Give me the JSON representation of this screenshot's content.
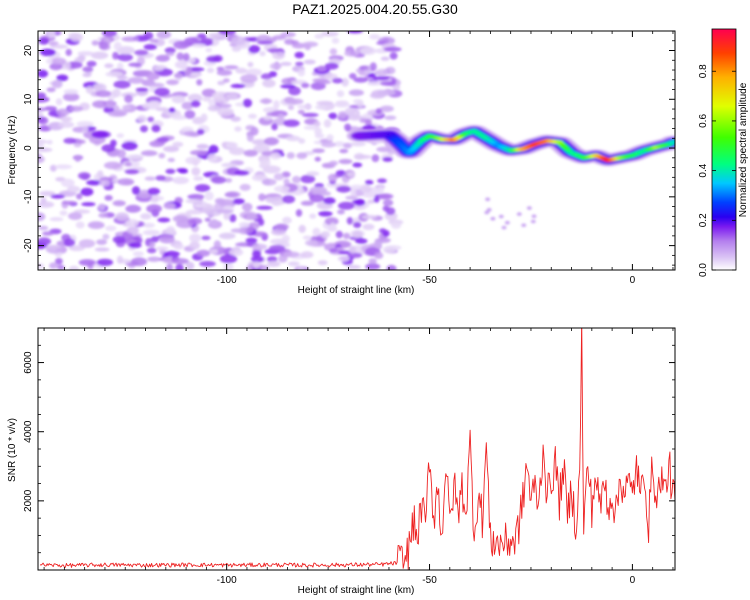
{
  "title": "PAZ1.2025.004.20.55.G30",
  "chart_data": [
    {
      "type": "heatmap",
      "xlabel": "Height of straight line (km)",
      "ylabel": "Frequency (Hz)",
      "xlim": [
        -146.5,
        10.5
      ],
      "ylim": [
        -25,
        24
      ],
      "xticks": [
        -100,
        -50,
        0
      ],
      "yticks": [
        -20,
        -10,
        0,
        10,
        20
      ],
      "colorbar": {
        "label": "Normalized spectral amplitude",
        "range": [
          0.0,
          0.97
        ],
        "ticks": [
          0.0,
          0.2,
          0.4,
          0.6,
          0.8
        ],
        "tick_labels": [
          "0.0",
          "0.2",
          "0.4",
          "0.6",
          "0.8"
        ],
        "colormap": [
          "#ffffff",
          "#dcc6f5",
          "#b47fee",
          "#7a1af0",
          "#3b00f0",
          "#0040ff",
          "#00c8ff",
          "#00ff80",
          "#40ff00",
          "#e0ff00",
          "#ffb000",
          "#ff4000",
          "#ff0050"
        ]
      },
      "signal_track": {
        "x": [
          -67,
          -60,
          -58,
          -55,
          -52,
          -50,
          -47,
          -44,
          -41,
          -39,
          -36,
          -33,
          -30,
          -27,
          -24,
          -21,
          -18,
          -15,
          -12,
          -9,
          -6,
          -3,
          0,
          3,
          6,
          9,
          10.5
        ],
        "frequency": [
          2.5,
          2.8,
          1.5,
          -1.0,
          1.5,
          2.5,
          1.8,
          1.7,
          3.0,
          3.5,
          2.0,
          0.5,
          -0.5,
          -0.2,
          0.8,
          1.5,
          1.2,
          -1.0,
          -2.0,
          -1.5,
          -2.5,
          -2.0,
          -1.5,
          -0.5,
          0.2,
          0.8,
          1.4
        ],
        "amplitude": [
          0.25,
          0.3,
          0.4,
          0.45,
          0.55,
          0.6,
          0.7,
          0.85,
          0.6,
          0.55,
          0.55,
          0.45,
          0.55,
          0.8,
          0.9,
          0.85,
          0.7,
          0.55,
          0.6,
          0.75,
          0.95,
          0.7,
          0.6,
          0.55,
          0.7,
          0.6,
          0.5
        ]
      },
      "noise_region": {
        "x_range": [
          -146.5,
          -58
        ],
        "amplitude_range": [
          0.05,
          0.25
        ]
      }
    },
    {
      "type": "line",
      "xlabel": "Height of straight line (km)",
      "ylabel": "SNR (10 * v/v)",
      "xlim": [
        -146.5,
        10.5
      ],
      "ylim": [
        0,
        7000
      ],
      "xticks": [
        -100,
        -50,
        0
      ],
      "yticks": [
        2000,
        4000,
        6000
      ],
      "color": "#ee2222",
      "series_points": [
        [
          -146,
          150
        ],
        [
          -140,
          130
        ],
        [
          -130,
          150
        ],
        [
          -120,
          140
        ],
        [
          -110,
          150
        ],
        [
          -100,
          140
        ],
        [
          -90,
          150
        ],
        [
          -80,
          140
        ],
        [
          -70,
          150
        ],
        [
          -62,
          160
        ],
        [
          -58,
          200
        ],
        [
          -56,
          300
        ],
        [
          -55,
          600
        ],
        [
          -54,
          1400
        ],
        [
          -53,
          900
        ],
        [
          -52,
          1900
        ],
        [
          -51,
          1200
        ],
        [
          -50,
          3350
        ],
        [
          -49,
          1500
        ],
        [
          -48,
          2400
        ],
        [
          -47,
          1000
        ],
        [
          -46,
          3050
        ],
        [
          -45,
          1300
        ],
        [
          -44,
          2500
        ],
        [
          -43,
          1600
        ],
        [
          -42,
          2400
        ],
        [
          -41,
          1700
        ],
        [
          -40,
          3650
        ],
        [
          -39,
          1100
        ],
        [
          -38,
          2200
        ],
        [
          -37,
          1500
        ],
        [
          -36,
          3600
        ],
        [
          -35,
          800
        ],
        [
          -34,
          900
        ],
        [
          -33,
          700
        ],
        [
          -32,
          850
        ],
        [
          -31,
          750
        ],
        [
          -30,
          900
        ],
        [
          -29,
          800
        ],
        [
          -28,
          1300
        ],
        [
          -27,
          2000
        ],
        [
          -26,
          3100
        ],
        [
          -25,
          2000
        ],
        [
          -24,
          2400
        ],
        [
          -23,
          1900
        ],
        [
          -22,
          3650
        ],
        [
          -21,
          2100
        ],
        [
          -20,
          2600
        ],
        [
          -19,
          3100
        ],
        [
          -18,
          2000
        ],
        [
          -17,
          3000
        ],
        [
          -16,
          1500
        ],
        [
          -15,
          2400
        ],
        [
          -14,
          1300
        ],
        [
          -13,
          2600
        ],
        [
          -12.5,
          7000
        ],
        [
          -12,
          1100
        ],
        [
          -11,
          3100
        ],
        [
          -10,
          1800
        ],
        [
          -9,
          2800
        ],
        [
          -8,
          1700
        ],
        [
          -7,
          2600
        ],
        [
          -6,
          1900
        ],
        [
          -5,
          2200
        ],
        [
          -4,
          1600
        ],
        [
          -3,
          2700
        ],
        [
          -2,
          2300
        ],
        [
          -1,
          2500
        ],
        [
          0,
          2100
        ],
        [
          1,
          3100
        ],
        [
          2,
          2000
        ],
        [
          3,
          2900
        ],
        [
          4,
          1300
        ],
        [
          5,
          3200
        ],
        [
          6,
          1800
        ],
        [
          7,
          2800
        ],
        [
          8,
          2200
        ],
        [
          9,
          3050
        ],
        [
          10,
          2200
        ],
        [
          10.5,
          2000
        ]
      ]
    }
  ]
}
